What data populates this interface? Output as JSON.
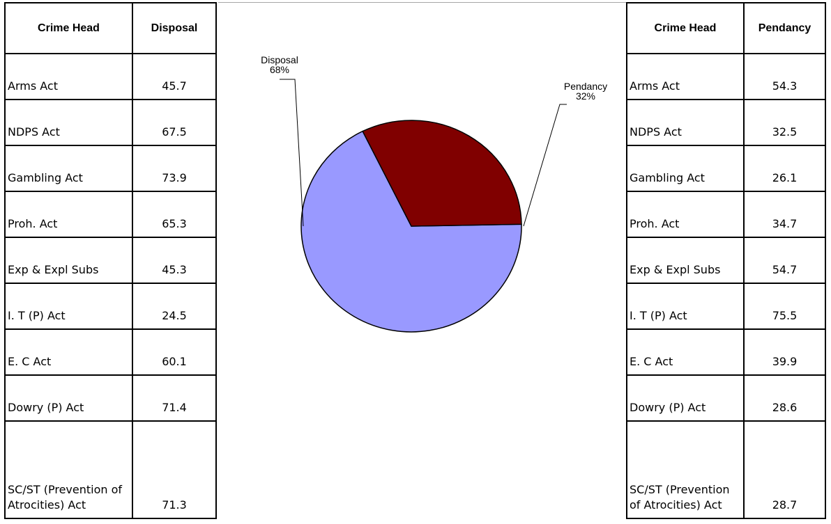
{
  "left_table": {
    "headers": {
      "name": "Crime Head",
      "value": "Disposal"
    },
    "rows": [
      {
        "name": "Arms Act",
        "value": "45.7"
      },
      {
        "name": "NDPS Act",
        "value": "67.5"
      },
      {
        "name": "Gambling Act",
        "value": "73.9"
      },
      {
        "name": "Proh. Act",
        "value": "65.3"
      },
      {
        "name": "Exp & Expl Subs",
        "value": "45.3"
      },
      {
        "name": "I. T (P) Act",
        "value": "24.5"
      },
      {
        "name": "E. C Act",
        "value": "60.1"
      },
      {
        "name": "Dowry (P) Act",
        "value": "71.4"
      },
      {
        "name": "SC/ST (Prevention of Atrocities) Act",
        "value": "71.3"
      }
    ]
  },
  "right_table": {
    "headers": {
      "name": "Crime Head",
      "value": "Pendancy"
    },
    "rows": [
      {
        "name": "Arms Act",
        "value": "54.3"
      },
      {
        "name": "NDPS Act",
        "value": "32.5"
      },
      {
        "name": "Gambling Act",
        "value": "26.1"
      },
      {
        "name": "Proh. Act",
        "value": "34.7"
      },
      {
        "name": "Exp & Expl Subs",
        "value": "54.7"
      },
      {
        "name": "I. T (P) Act",
        "value": "75.5"
      },
      {
        "name": "E. C Act",
        "value": "39.9"
      },
      {
        "name": "Dowry (P) Act",
        "value": "28.6"
      },
      {
        "name": "SC/ST (Prevention of Atrocities) Act",
        "value": "28.7"
      }
    ]
  },
  "chart_data": {
    "type": "pie",
    "slices": [
      {
        "label": "Disposal",
        "percent_label": "68%",
        "value": 68,
        "color": "#9999ff"
      },
      {
        "label": "Pendancy",
        "percent_label": "32%",
        "value": 32,
        "color": "#800000"
      }
    ]
  }
}
